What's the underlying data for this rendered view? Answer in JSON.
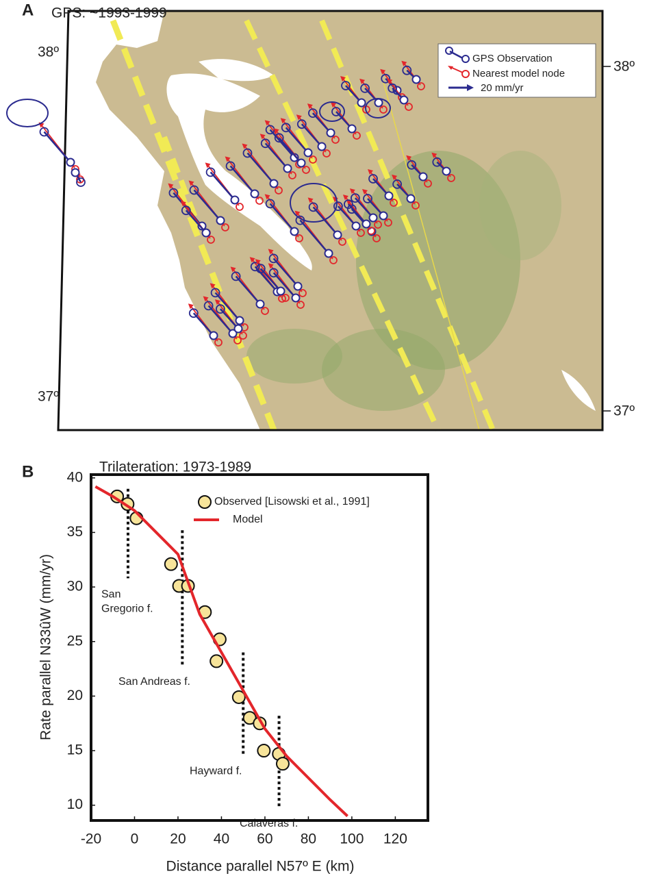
{
  "panel_a": {
    "label": "A",
    "title": "GPS: ~1993-1999",
    "lat_left_top": "38º",
    "lat_left_bottom": "37º",
    "lat_right_top": "38º",
    "lat_right_bottom": "37º",
    "legend": [
      "GPS Observation",
      "Nearest model node",
      "20 mm/yr"
    ]
  },
  "chart_data": {
    "type": "scatter",
    "panel_label": "B",
    "title": "Trilateration: 1973-1989",
    "x_label": "Distance parallel N57º E (km)",
    "y_label": "Rate parallel N33ûW (mm/yr)",
    "xlim": [
      -20,
      135
    ],
    "ylim": [
      8.6,
      40.3
    ],
    "xticks": [
      -20,
      0,
      20,
      40,
      60,
      80,
      100,
      120
    ],
    "yticks": [
      10,
      15,
      20,
      25,
      30,
      35,
      40
    ],
    "series": [
      {
        "name": "Observed [Lisowski et al., 1991]",
        "type": "scatter",
        "color": "#f7e49a",
        "x": [
          -8,
          -3.2,
          0.9,
          16.8,
          20.5,
          24.6,
          32.4,
          39.2,
          37.7,
          48,
          53,
          57.6,
          59.5,
          66.4,
          68.2
        ],
        "values": [
          38.3,
          37.6,
          36.3,
          32.1,
          30.1,
          30.1,
          27.7,
          25.2,
          23.2,
          19.9,
          18,
          17.5,
          15,
          14.7,
          13.8
        ]
      },
      {
        "name": "Model",
        "type": "line",
        "color": "#e3262b",
        "x": [
          -18,
          -10,
          0,
          10,
          20,
          30,
          40,
          50,
          60,
          70,
          80,
          90,
          98
        ],
        "values": [
          39.2,
          38.3,
          37,
          35,
          33,
          27.5,
          24,
          20.5,
          17,
          14.5,
          12.5,
          10.5,
          9
        ]
      }
    ],
    "annotations": [
      {
        "lines": [
          "San",
          "Gregorio f."
        ],
        "x": -3,
        "y_range": [
          30.8,
          39
        ]
      },
      {
        "lines": [
          "San Andreas f."
        ],
        "x": 22,
        "y_range": [
          22.8,
          35.2
        ]
      },
      {
        "lines": [
          "Hayward f."
        ],
        "x": 50,
        "y_range": [
          14.6,
          24
        ]
      },
      {
        "lines": [
          "Calaveras f."
        ],
        "x": 66.5,
        "y_range": [
          9.8,
          18.2
        ]
      }
    ]
  }
}
